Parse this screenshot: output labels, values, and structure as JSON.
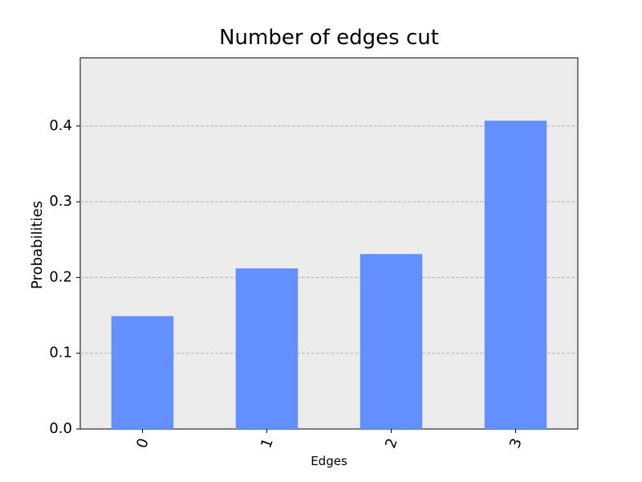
{
  "chart_data": {
    "type": "bar",
    "title": "Number of edges cut",
    "xlabel": "Edges",
    "ylabel": "Probabilities",
    "categories": [
      "0",
      "1",
      "2",
      "3"
    ],
    "values": [
      0.149,
      0.212,
      0.231,
      0.407
    ],
    "ylim": [
      0,
      0.49
    ],
    "yticks": [
      "0.0",
      "0.1",
      "0.2",
      "0.3",
      "0.4"
    ],
    "grid": "y-dashed",
    "colors": {
      "bar": "#648fff",
      "plot_background": "#ececec",
      "grid": "#b3b3b3",
      "axis": "#000000"
    }
  }
}
